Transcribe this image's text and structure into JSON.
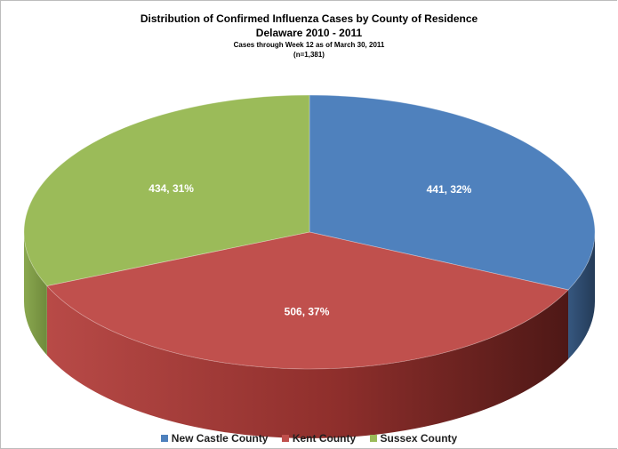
{
  "chart_data": {
    "type": "pie",
    "title": "Distribution of Confirmed Influenza Cases by County of Residence",
    "subtitle": "Delaware 2010 - 2011",
    "note": "Cases through Week 12 as of March 30, 2011",
    "total_label": "(n=1,381)",
    "categories": [
      "New Castle County",
      "Kent County",
      "Sussex County"
    ],
    "values": [
      441,
      506,
      434
    ],
    "percents": [
      32,
      37,
      31
    ],
    "data_labels": [
      "441, 32%",
      "506, 37%",
      "434, 31%"
    ],
    "colors": [
      "#4f81bd",
      "#c0504d",
      "#9bbb59"
    ],
    "legend_position": "bottom",
    "style": "3d"
  }
}
